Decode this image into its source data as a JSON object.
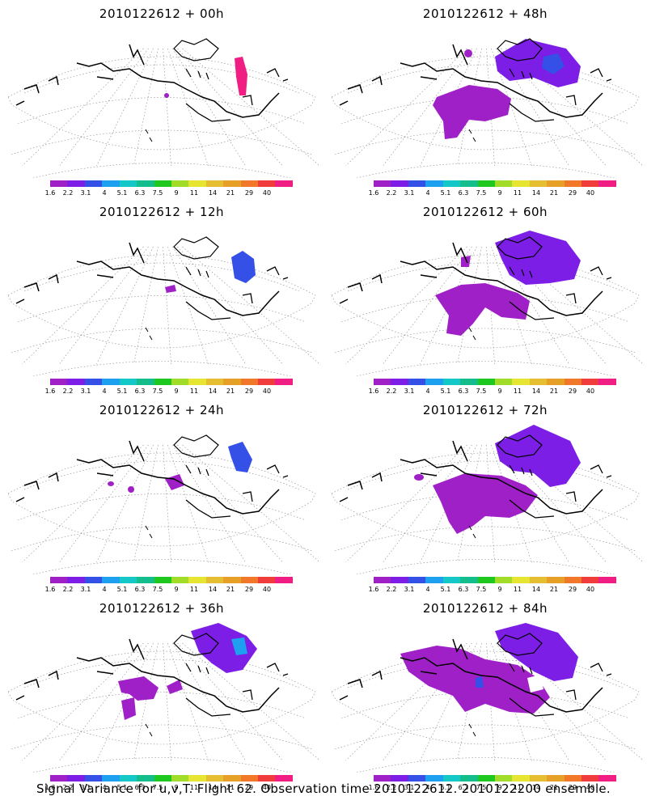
{
  "panels": [
    {
      "title": "2010122612 + 00h"
    },
    {
      "title": "2010122612 + 48h"
    },
    {
      "title": "2010122612 + 12h"
    },
    {
      "title": "2010122612 + 60h"
    },
    {
      "title": "2010122612 + 24h"
    },
    {
      "title": "2010122612 + 72h"
    },
    {
      "title": "2010122612 + 36h"
    },
    {
      "title": "2010122612 + 84h"
    }
  ],
  "colorbar": {
    "colors": [
      "#a020c8",
      "#7c1ee6",
      "#3550e6",
      "#1ea0f0",
      "#14c8c8",
      "#14be8c",
      "#1ec81e",
      "#a0dc28",
      "#e6e632",
      "#e6be32",
      "#e6a028",
      "#f07828",
      "#f03c3c",
      "#f01e82"
    ],
    "labels": [
      "1.6",
      "2.2",
      "3.1",
      "4",
      "5.1",
      "6.3",
      "7.5",
      "9",
      "11",
      "14",
      "21",
      "29",
      "40"
    ]
  },
  "footer": "Signal Variance for u,v,T. Flight 62. Observation time 2010122612. 2010122200 ensemble."
}
